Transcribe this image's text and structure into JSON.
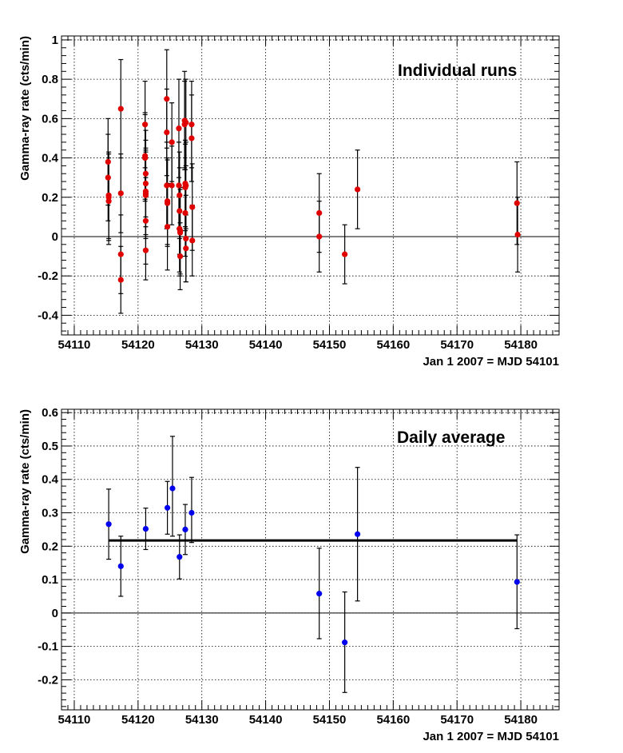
{
  "chart_data": [
    {
      "type": "scatter",
      "title": "Individual runs",
      "xlabel": "Jan 1 2007 = MJD 54101",
      "ylabel": "Gamma-ray rate (cts/min)",
      "xlim": [
        54108,
        54186
      ],
      "ylim": [
        -0.5,
        1.02
      ],
      "xticks": [
        54110,
        54120,
        54130,
        54140,
        54150,
        54160,
        54170,
        54180
      ],
      "yticks": [
        -0.4,
        -0.2,
        0,
        0.2,
        0.4,
        0.6,
        0.8,
        1
      ],
      "yticks_text": [
        "-0.4",
        "-0.2",
        "0",
        "0.2",
        "0.4",
        "0.6",
        "0.8",
        "1"
      ],
      "grid": true,
      "marker_color": "#e00000",
      "series": [
        {
          "name": "Individual runs",
          "x": [
            54115.3,
            54115.3,
            54115.4,
            54115.4,
            54115.4,
            54117.3,
            54117.3,
            54117.3,
            54117.3,
            54121.1,
            54121.1,
            54121.1,
            54121.2,
            54121.2,
            54121.2,
            54121.2,
            54121.2,
            54121.2,
            54121.2,
            54124.5,
            54124.5,
            54124.5,
            54124.6,
            54124.6,
            54124.6,
            54125.3,
            54125.3,
            54126.4,
            54126.4,
            54126.5,
            54126.5,
            54126.5,
            54126.6,
            54126.6,
            54126.6,
            54127.3,
            54127.3,
            54127.4,
            54127.4,
            54127.4,
            54127.5,
            54127.5,
            54127.5,
            54127.5,
            54128.4,
            54128.4,
            54128.5,
            54128.5,
            54148.4,
            54148.4,
            54152.4,
            54154.4,
            54179.4,
            54179.5
          ],
          "y": [
            0.38,
            0.3,
            0.21,
            0.2,
            0.18,
            0.65,
            0.22,
            -0.09,
            -0.22,
            0.57,
            0.41,
            0.4,
            0.32,
            0.27,
            0.23,
            0.22,
            0.21,
            0.08,
            -0.07,
            0.7,
            0.53,
            0.26,
            0.18,
            0.17,
            0.05,
            0.48,
            0.26,
            0.55,
            0.26,
            0.21,
            0.13,
            0.04,
            0.03,
            0.02,
            -0.1,
            0.59,
            0.57,
            0.27,
            0.25,
            0.12,
            0.26,
            -0.01,
            -0.06,
            0.58,
            0.57,
            0.5,
            0.15,
            -0.02,
            0.12,
            0.0,
            -0.09,
            0.24,
            0.17,
            0.01
          ],
          "yerr": [
            0.22,
            0.22,
            0.22,
            0.22,
            0.22,
            0.25,
            0.2,
            0.2,
            0.17,
            0.22,
            0.22,
            0.22,
            0.22,
            0.22,
            0.22,
            0.22,
            0.22,
            0.22,
            0.15,
            0.25,
            0.22,
            0.22,
            0.22,
            0.22,
            0.22,
            0.2,
            0.2,
            0.25,
            0.22,
            0.22,
            0.22,
            0.22,
            0.22,
            0.22,
            0.17,
            0.25,
            0.22,
            0.22,
            0.22,
            0.22,
            0.22,
            0.22,
            0.17,
            0.22,
            0.22,
            0.22,
            0.22,
            0.18,
            0.2,
            0.18,
            0.15,
            0.2,
            0.21,
            0.19
          ]
        }
      ],
      "reference_line": {
        "y": 0,
        "from": 54108,
        "to": 54186
      }
    },
    {
      "type": "scatter",
      "title": "Daily average",
      "xlabel": "Jan 1 2007 = MJD 54101",
      "ylabel": "Gamma-ray rate (cts/min)",
      "xlim": [
        54108,
        54186
      ],
      "ylim": [
        -0.29,
        0.61
      ],
      "xticks": [
        54110,
        54120,
        54130,
        54140,
        54150,
        54160,
        54170,
        54180
      ],
      "yticks": [
        -0.2,
        -0.1,
        0,
        0.1,
        0.2,
        0.3,
        0.4,
        0.5,
        0.6
      ],
      "yticks_text": [
        "-0.2",
        "-0.1",
        "0",
        "0.1",
        "0.2",
        "0.3",
        "0.4",
        "0.5",
        "0.6"
      ],
      "grid": true,
      "marker_color": "#0000ee",
      "series": [
        {
          "name": "Daily average",
          "x": [
            54115.4,
            54117.3,
            54121.2,
            54124.6,
            54125.4,
            54126.5,
            54127.4,
            54128.4,
            54148.4,
            54152.4,
            54154.4,
            54179.4
          ],
          "y": [
            0.266,
            0.14,
            0.252,
            0.315,
            0.373,
            0.168,
            0.25,
            0.3,
            0.058,
            -0.088,
            0.236,
            0.093
          ],
          "yerr_low": [
            0.105,
            0.09,
            0.062,
            0.079,
            0.143,
            0.066,
            0.075,
            0.089,
            0.135,
            0.15,
            0.2,
            0.14
          ],
          "yerr_high": [
            0.105,
            0.09,
            0.062,
            0.079,
            0.156,
            0.066,
            0.075,
            0.106,
            0.136,
            0.151,
            0.2,
            0.141
          ]
        }
      ],
      "fit_line": {
        "y": 0.217,
        "from": 54115.4,
        "to": 54179.4
      },
      "reference_line": {
        "y": 0,
        "from": 54108,
        "to": 54186
      }
    }
  ]
}
